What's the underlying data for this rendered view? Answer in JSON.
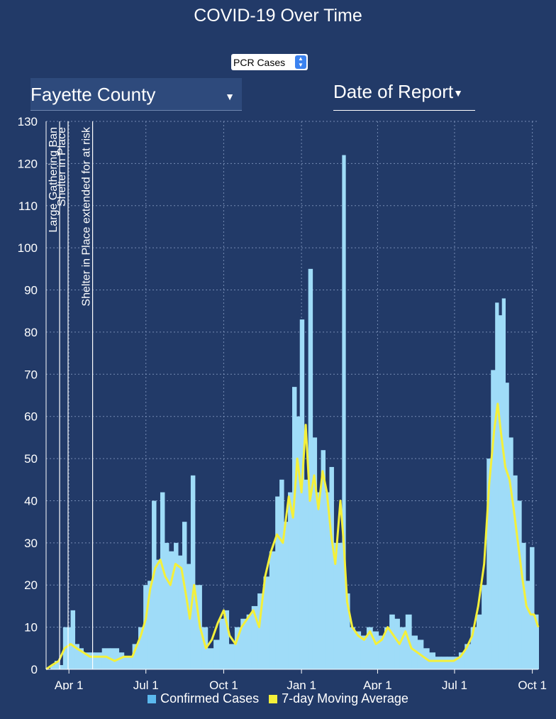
{
  "title": "COVID-19 Over Time",
  "metric_select": {
    "value": "PCR Cases"
  },
  "county_select": {
    "value": "Fayette County"
  },
  "date_select": {
    "value": "Date of Report"
  },
  "colors": {
    "background": "#223a68",
    "bars": "#9fdcf8",
    "moving_average": "#f4f03a",
    "legend_bar_swatch": "#5bb9ee",
    "grid": "#8aa0c6"
  },
  "chart_data": {
    "type": "bar",
    "ylim": [
      0,
      130
    ],
    "yticks": [
      0,
      10,
      20,
      30,
      40,
      50,
      60,
      70,
      80,
      90,
      100,
      110,
      120,
      130
    ],
    "x_start": "2020-03-05",
    "x_end": "2021-10-08",
    "xticks": [
      {
        "date": "2020-04-01",
        "label": "Apr 1"
      },
      {
        "date": "2020-07-01",
        "label": "Jul 1"
      },
      {
        "date": "2020-10-01",
        "label": "Oct 1"
      },
      {
        "date": "2021-01-01",
        "label": "Jan 1"
      },
      {
        "date": "2021-04-01",
        "label": "Apr 1"
      },
      {
        "date": "2021-07-01",
        "label": "Jul 1"
      },
      {
        "date": "2021-10-01",
        "label": "Oct 1"
      }
    ],
    "annotations": [
      {
        "date": "2020-03-21",
        "label": "Large Gathering Ban"
      },
      {
        "date": "2020-03-31",
        "label": "Shelter in Place"
      },
      {
        "date": "2020-04-29",
        "label": "Shelter in Place extended for at risk"
      }
    ],
    "series": [
      {
        "name": "Confirmed Cases",
        "type": "bar",
        "points": [
          [
            "2020-03-05",
            0
          ],
          [
            "2020-03-10",
            1
          ],
          [
            "2020-03-15",
            2
          ],
          [
            "2020-03-20",
            1
          ],
          [
            "2020-03-25",
            10
          ],
          [
            "2020-03-30",
            10
          ],
          [
            "2020-04-03",
            14
          ],
          [
            "2020-04-08",
            6
          ],
          [
            "2020-04-13",
            5
          ],
          [
            "2020-04-18",
            4
          ],
          [
            "2020-04-25",
            4
          ],
          [
            "2020-05-01",
            4
          ],
          [
            "2020-05-10",
            5
          ],
          [
            "2020-05-20",
            5
          ],
          [
            "2020-05-30",
            4
          ],
          [
            "2020-06-05",
            3
          ],
          [
            "2020-06-15",
            6
          ],
          [
            "2020-06-22",
            10
          ],
          [
            "2020-06-28",
            20
          ],
          [
            "2020-07-03",
            21
          ],
          [
            "2020-07-08",
            40
          ],
          [
            "2020-07-13",
            26
          ],
          [
            "2020-07-18",
            42
          ],
          [
            "2020-07-23",
            30
          ],
          [
            "2020-07-28",
            28
          ],
          [
            "2020-08-03",
            30
          ],
          [
            "2020-08-08",
            27
          ],
          [
            "2020-08-13",
            35
          ],
          [
            "2020-08-18",
            25
          ],
          [
            "2020-08-23",
            46
          ],
          [
            "2020-08-28",
            20
          ],
          [
            "2020-09-05",
            10
          ],
          [
            "2020-09-12",
            5
          ],
          [
            "2020-09-19",
            7
          ],
          [
            "2020-09-26",
            12
          ],
          [
            "2020-10-01",
            14
          ],
          [
            "2020-10-07",
            6
          ],
          [
            "2020-10-14",
            10
          ],
          [
            "2020-10-21",
            12
          ],
          [
            "2020-10-28",
            13
          ],
          [
            "2020-11-03",
            15
          ],
          [
            "2020-11-10",
            18
          ],
          [
            "2020-11-17",
            22
          ],
          [
            "2020-11-24",
            28
          ],
          [
            "2020-12-01",
            41
          ],
          [
            "2020-12-06",
            45
          ],
          [
            "2020-12-11",
            35
          ],
          [
            "2020-12-16",
            42
          ],
          [
            "2020-12-21",
            67
          ],
          [
            "2020-12-26",
            60
          ],
          [
            "2020-12-30",
            83
          ],
          [
            "2021-01-04",
            45
          ],
          [
            "2021-01-09",
            95
          ],
          [
            "2021-01-14",
            55
          ],
          [
            "2021-01-19",
            42
          ],
          [
            "2021-01-24",
            52
          ],
          [
            "2021-01-29",
            42
          ],
          [
            "2021-02-03",
            48
          ],
          [
            "2021-02-08",
            30
          ],
          [
            "2021-02-13",
            30
          ],
          [
            "2021-02-18",
            122
          ],
          [
            "2021-02-22",
            18
          ],
          [
            "2021-02-27",
            10
          ],
          [
            "2021-03-05",
            9
          ],
          [
            "2021-03-12",
            8
          ],
          [
            "2021-03-19",
            10
          ],
          [
            "2021-03-26",
            9
          ],
          [
            "2021-04-02",
            8
          ],
          [
            "2021-04-09",
            10
          ],
          [
            "2021-04-15",
            13
          ],
          [
            "2021-04-21",
            12
          ],
          [
            "2021-04-27",
            10
          ],
          [
            "2021-05-04",
            13
          ],
          [
            "2021-05-11",
            8
          ],
          [
            "2021-05-18",
            7
          ],
          [
            "2021-05-25",
            5
          ],
          [
            "2021-06-01",
            4
          ],
          [
            "2021-06-08",
            3
          ],
          [
            "2021-06-15",
            3
          ],
          [
            "2021-06-22",
            3
          ],
          [
            "2021-06-29",
            3
          ],
          [
            "2021-07-06",
            4
          ],
          [
            "2021-07-13",
            6
          ],
          [
            "2021-07-20",
            10
          ],
          [
            "2021-07-27",
            13
          ],
          [
            "2021-08-02",
            20
          ],
          [
            "2021-08-08",
            50
          ],
          [
            "2021-08-13",
            71
          ],
          [
            "2021-08-18",
            87
          ],
          [
            "2021-08-22",
            84
          ],
          [
            "2021-08-26",
            88
          ],
          [
            "2021-08-30",
            68
          ],
          [
            "2021-09-03",
            55
          ],
          [
            "2021-09-08",
            46
          ],
          [
            "2021-09-13",
            40
          ],
          [
            "2021-09-18",
            30
          ],
          [
            "2021-09-23",
            21
          ],
          [
            "2021-09-28",
            29
          ],
          [
            "2021-10-03",
            13
          ],
          [
            "2021-10-08",
            10
          ]
        ]
      },
      {
        "name": "7-day Moving Average",
        "type": "line",
        "points": [
          [
            "2020-03-05",
            0
          ],
          [
            "2020-03-12",
            1
          ],
          [
            "2020-03-20",
            2
          ],
          [
            "2020-03-27",
            5
          ],
          [
            "2020-04-03",
            6
          ],
          [
            "2020-04-10",
            5
          ],
          [
            "2020-04-18",
            4
          ],
          [
            "2020-04-26",
            3
          ],
          [
            "2020-05-05",
            3
          ],
          [
            "2020-05-15",
            3
          ],
          [
            "2020-05-25",
            2
          ],
          [
            "2020-06-05",
            3
          ],
          [
            "2020-06-15",
            3
          ],
          [
            "2020-06-25",
            8
          ],
          [
            "2020-07-01",
            12
          ],
          [
            "2020-07-06",
            19
          ],
          [
            "2020-07-12",
            24
          ],
          [
            "2020-07-18",
            26
          ],
          [
            "2020-07-24",
            22
          ],
          [
            "2020-07-30",
            20
          ],
          [
            "2020-08-05",
            25
          ],
          [
            "2020-08-12",
            24
          ],
          [
            "2020-08-18",
            17
          ],
          [
            "2020-08-22",
            12
          ],
          [
            "2020-08-27",
            20
          ],
          [
            "2020-09-03",
            10
          ],
          [
            "2020-09-10",
            5
          ],
          [
            "2020-09-17",
            7
          ],
          [
            "2020-09-24",
            11
          ],
          [
            "2020-10-01",
            14
          ],
          [
            "2020-10-08",
            8
          ],
          [
            "2020-10-15",
            6
          ],
          [
            "2020-10-22",
            10
          ],
          [
            "2020-10-29",
            12
          ],
          [
            "2020-11-05",
            14
          ],
          [
            "2020-11-12",
            10
          ],
          [
            "2020-11-19",
            22
          ],
          [
            "2020-11-26",
            28
          ],
          [
            "2020-12-03",
            32
          ],
          [
            "2020-12-10",
            30
          ],
          [
            "2020-12-17",
            41
          ],
          [
            "2020-12-22",
            36
          ],
          [
            "2020-12-27",
            50
          ],
          [
            "2021-01-01",
            42
          ],
          [
            "2021-01-06",
            58
          ],
          [
            "2021-01-11",
            40
          ],
          [
            "2021-01-16",
            46
          ],
          [
            "2021-01-21",
            38
          ],
          [
            "2021-01-26",
            47
          ],
          [
            "2021-01-31",
            42
          ],
          [
            "2021-02-05",
            32
          ],
          [
            "2021-02-10",
            25
          ],
          [
            "2021-02-16",
            40
          ],
          [
            "2021-02-20",
            30
          ],
          [
            "2021-02-24",
            16
          ],
          [
            "2021-03-02",
            10
          ],
          [
            "2021-03-09",
            8
          ],
          [
            "2021-03-16",
            7
          ],
          [
            "2021-03-23",
            9
          ],
          [
            "2021-03-30",
            6
          ],
          [
            "2021-04-06",
            7
          ],
          [
            "2021-04-13",
            10
          ],
          [
            "2021-04-20",
            8
          ],
          [
            "2021-04-27",
            6
          ],
          [
            "2021-05-04",
            9
          ],
          [
            "2021-05-11",
            5
          ],
          [
            "2021-05-18",
            4
          ],
          [
            "2021-05-25",
            3
          ],
          [
            "2021-06-01",
            2
          ],
          [
            "2021-06-10",
            2
          ],
          [
            "2021-06-20",
            2
          ],
          [
            "2021-06-30",
            2
          ],
          [
            "2021-07-08",
            3
          ],
          [
            "2021-07-15",
            5
          ],
          [
            "2021-07-22",
            8
          ],
          [
            "2021-07-29",
            15
          ],
          [
            "2021-08-05",
            25
          ],
          [
            "2021-08-11",
            44
          ],
          [
            "2021-08-17",
            57
          ],
          [
            "2021-08-21",
            63
          ],
          [
            "2021-08-25",
            56
          ],
          [
            "2021-08-30",
            48
          ],
          [
            "2021-09-04",
            45
          ],
          [
            "2021-09-09",
            38
          ],
          [
            "2021-09-14",
            30
          ],
          [
            "2021-09-19",
            22
          ],
          [
            "2021-09-24",
            15
          ],
          [
            "2021-09-29",
            13
          ],
          [
            "2021-10-03",
            13
          ],
          [
            "2021-10-08",
            10
          ]
        ]
      }
    ],
    "legend": {
      "placement": "bottom"
    },
    "grid": true
  }
}
